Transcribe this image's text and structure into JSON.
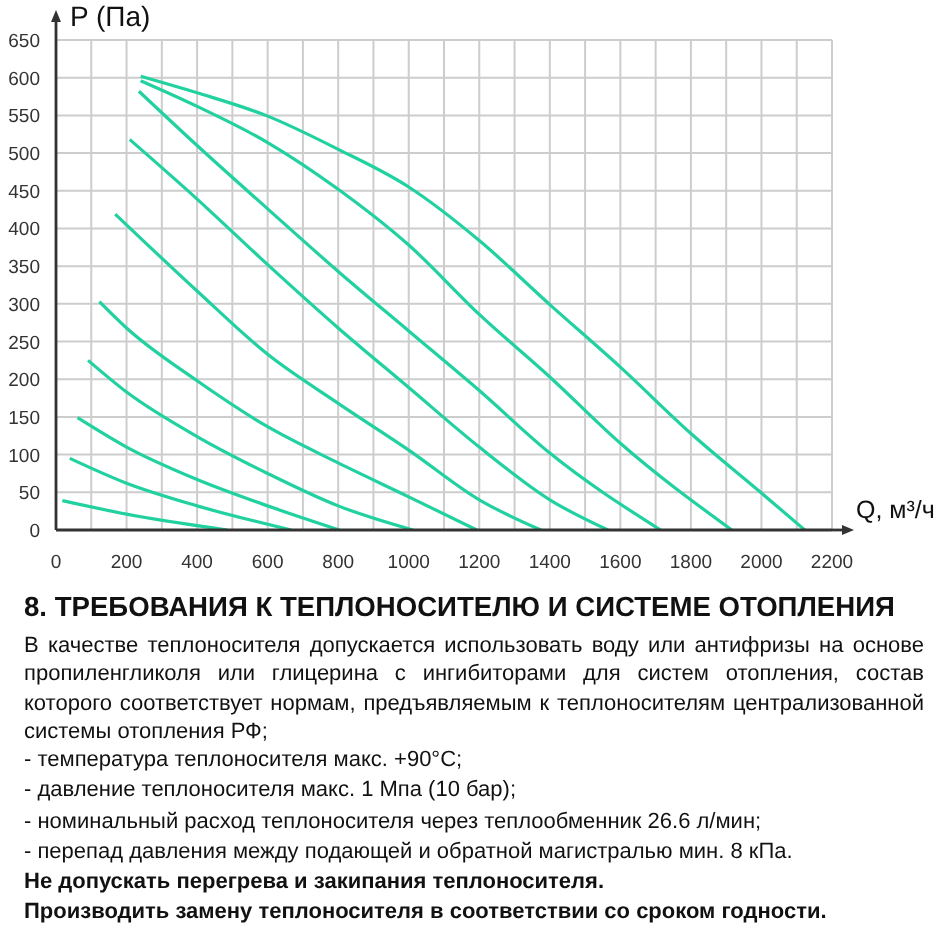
{
  "chart_data": {
    "type": "line",
    "ylabel": "P (Па)",
    "xlabel": "Q, м³/ч",
    "xlim": [
      0,
      2200
    ],
    "ylim": [
      0,
      650
    ],
    "xticks": [
      0,
      {
        "value": 100,
        "label": null
      },
      200,
      {
        "value": 300,
        "label": null
      },
      400,
      {
        "value": 500,
        "label": null
      },
      600,
      {
        "value": 700,
        "label": null
      },
      800,
      {
        "value": 900,
        "label": null
      },
      1000,
      {
        "value": 1100,
        "label": null
      },
      1200,
      {
        "value": 1300,
        "label": null
      },
      1400,
      {
        "value": 1500,
        "label": null
      },
      1600,
      {
        "value": 1700,
        "label": null
      },
      1800,
      {
        "value": 1900,
        "label": null
      },
      2000,
      {
        "value": 2100,
        "label": null
      },
      2200
    ],
    "yticks": [
      0,
      50,
      100,
      150,
      200,
      250,
      300,
      350,
      400,
      450,
      500,
      550,
      600,
      650
    ],
    "grid": true,
    "series": [
      {
        "color": "#21d19f",
        "x": [
          18,
          200,
          486
        ],
        "values": [
          39,
          21,
          0
        ]
      },
      {
        "color": "#21d19f",
        "x": [
          39,
          200,
          400,
          667
        ],
        "values": [
          95,
          62,
          32,
          0
        ]
      },
      {
        "color": "#21d19f",
        "x": [
          61,
          200,
          400,
          600,
          803
        ],
        "values": [
          149,
          110,
          67,
          32,
          0
        ]
      },
      {
        "color": "#21d19f",
        "x": [
          91,
          200,
          400,
          600,
          800,
          1012
        ],
        "values": [
          225,
          183,
          124,
          75,
          32,
          0
        ]
      },
      {
        "color": "#21d19f",
        "x": [
          123,
          200,
          400,
          600,
          800,
          1000,
          1193
        ],
        "values": [
          303,
          268,
          198,
          137,
          89,
          44,
          0
        ]
      },
      {
        "color": "#21d19f",
        "x": [
          168,
          400,
          600,
          800,
          1000,
          1200,
          1375
        ],
        "values": [
          419,
          317,
          233,
          168,
          106,
          40,
          0
        ]
      },
      {
        "color": "#21d19f",
        "x": [
          209,
          400,
          600,
          800,
          1000,
          1200,
          1400,
          1565
        ],
        "values": [
          518,
          439,
          352,
          268,
          189,
          110,
          40,
          0
        ]
      },
      {
        "color": "#21d19f",
        "x": [
          235,
          400,
          600,
          800,
          1000,
          1200,
          1400,
          1714
        ],
        "values": [
          582,
          510,
          426,
          343,
          264,
          185,
          102,
          0
        ]
      },
      {
        "color": "#21d19f",
        "x": [
          240,
          400,
          600,
          800,
          1000,
          1200,
          1400,
          1600,
          1916
        ],
        "values": [
          596,
          562,
          514,
          452,
          378,
          286,
          203,
          115,
          0
        ]
      },
      {
        "color": "#21d19f",
        "x": [
          240,
          400,
          600,
          800,
          1000,
          1200,
          1400,
          1600,
          1800,
          2000,
          2123
        ],
        "values": [
          602,
          580,
          549,
          505,
          455,
          384,
          299,
          216,
          128,
          49,
          0
        ]
      }
    ],
    "annotations": [
      "8. ТРЕБОВАНИЯ К ТЕПЛОНОСИТЕЛЮ И СИСТЕМЕ ОТОПЛЕНИЯ",
      "В качестве теплоносителя допускается использовать воду или антифризы на основе пропиленгликоля или глицерина с ингибиторами для систем отопления, состав которого соответствует нормам, предъявляемым к теплоносителям централизованной системы отопления РФ;",
      "- температура теплоносителя макс. +90°C;",
      "- давление теплоносителя макс. 1 Мпа (10 бар);",
      "- номинальный расход теплоносителя через теплообменник 26.6 л/мин;",
      "- перепад давления между подающей и обратной магистралью мин. 8 кПа.",
      "Не допускать перегрева и закипания теплоносителя.",
      "Производить замену теплоносителя в соответствии со сроком годности."
    ]
  }
}
